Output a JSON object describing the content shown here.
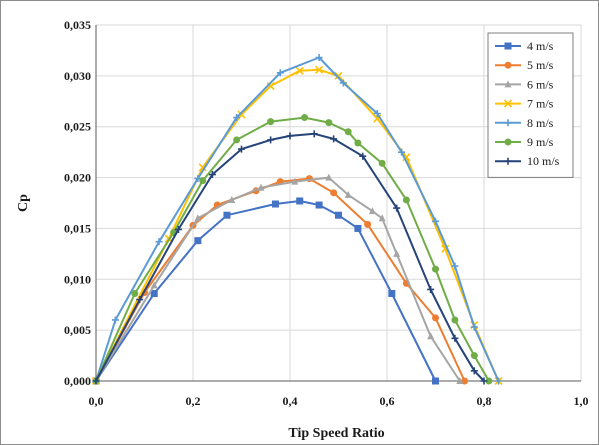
{
  "chart_data": {
    "type": "line",
    "xlabel": "Tip Speed Ratio",
    "ylabel": "Cp",
    "xlim": [
      0,
      1
    ],
    "ylim": [
      0,
      0.035
    ],
    "xticks": [
      "0,0",
      "0,2",
      "0,4",
      "0,6",
      "0,8",
      "1,0"
    ],
    "yticks": [
      "0,000",
      "0,005",
      "0,010",
      "0,015",
      "0,020",
      "0,025",
      "0,030",
      "0,035"
    ],
    "grid": "both",
    "legend_position": "top-right",
    "series": [
      {
        "name": "4 m/s",
        "color": "#4472c4",
        "marker": "square",
        "x": [
          0,
          0.12,
          0.21,
          0.27,
          0.37,
          0.42,
          0.46,
          0.5,
          0.54,
          0.61,
          0.7
        ],
        "y": [
          0,
          0.0086,
          0.0138,
          0.0163,
          0.0174,
          0.0177,
          0.0173,
          0.0163,
          0.015,
          0.0086,
          0
        ]
      },
      {
        "name": "5 m/s",
        "color": "#ed7d31",
        "marker": "circle",
        "x": [
          0,
          0.1,
          0.2,
          0.25,
          0.33,
          0.38,
          0.44,
          0.49,
          0.56,
          0.64,
          0.7,
          0.76
        ],
        "y": [
          0,
          0.0087,
          0.0153,
          0.0173,
          0.0187,
          0.0196,
          0.0199,
          0.0185,
          0.0154,
          0.0096,
          0.0062,
          0
        ]
      },
      {
        "name": "6 m/s",
        "color": "#a5a5a5",
        "marker": "triangle",
        "x": [
          0,
          0.12,
          0.21,
          0.28,
          0.34,
          0.41,
          0.48,
          0.52,
          0.57,
          0.59,
          0.62,
          0.69,
          0.75
        ],
        "y": [
          0,
          0.0094,
          0.016,
          0.0178,
          0.019,
          0.0196,
          0.02,
          0.0183,
          0.0167,
          0.016,
          0.0125,
          0.0044,
          0
        ]
      },
      {
        "name": "7 m/s",
        "color": "#ffc000",
        "marker": "x",
        "x": [
          0,
          0.15,
          0.22,
          0.3,
          0.36,
          0.42,
          0.46,
          0.5,
          0.58,
          0.64,
          0.72,
          0.78,
          0.83
        ],
        "y": [
          0,
          0.014,
          0.021,
          0.0262,
          0.029,
          0.0305,
          0.0306,
          0.03,
          0.0258,
          0.022,
          0.013,
          0.0055,
          0
        ]
      },
      {
        "name": "8 m/s",
        "color": "#5b9bd5",
        "marker": "plus",
        "x": [
          0,
          0.04,
          0.13,
          0.21,
          0.29,
          0.38,
          0.46,
          0.51,
          0.58,
          0.63,
          0.7,
          0.74,
          0.78,
          0.83
        ],
        "y": [
          0,
          0.006,
          0.0137,
          0.0199,
          0.0259,
          0.0303,
          0.0318,
          0.0293,
          0.0263,
          0.0225,
          0.0157,
          0.0113,
          0.0053,
          0
        ]
      },
      {
        "name": "9 m/s",
        "color": "#70ad47",
        "marker": "circle",
        "x": [
          0,
          0.08,
          0.16,
          0.22,
          0.29,
          0.36,
          0.43,
          0.48,
          0.52,
          0.54,
          0.59,
          0.64,
          0.7,
          0.74,
          0.78,
          0.81
        ],
        "y": [
          0,
          0.0086,
          0.0146,
          0.0197,
          0.0237,
          0.0255,
          0.0259,
          0.0254,
          0.0245,
          0.0234,
          0.0214,
          0.0178,
          0.011,
          0.006,
          0.0025,
          0
        ]
      },
      {
        "name": "10 m/s",
        "color": "#264478",
        "marker": "plus",
        "x": [
          0,
          0.09,
          0.17,
          0.24,
          0.3,
          0.36,
          0.4,
          0.45,
          0.49,
          0.55,
          0.62,
          0.69,
          0.74,
          0.78,
          0.8
        ],
        "y": [
          0,
          0.008,
          0.0149,
          0.0203,
          0.0228,
          0.0237,
          0.0241,
          0.0243,
          0.0238,
          0.0221,
          0.017,
          0.009,
          0.0042,
          0.001,
          0
        ]
      }
    ]
  }
}
